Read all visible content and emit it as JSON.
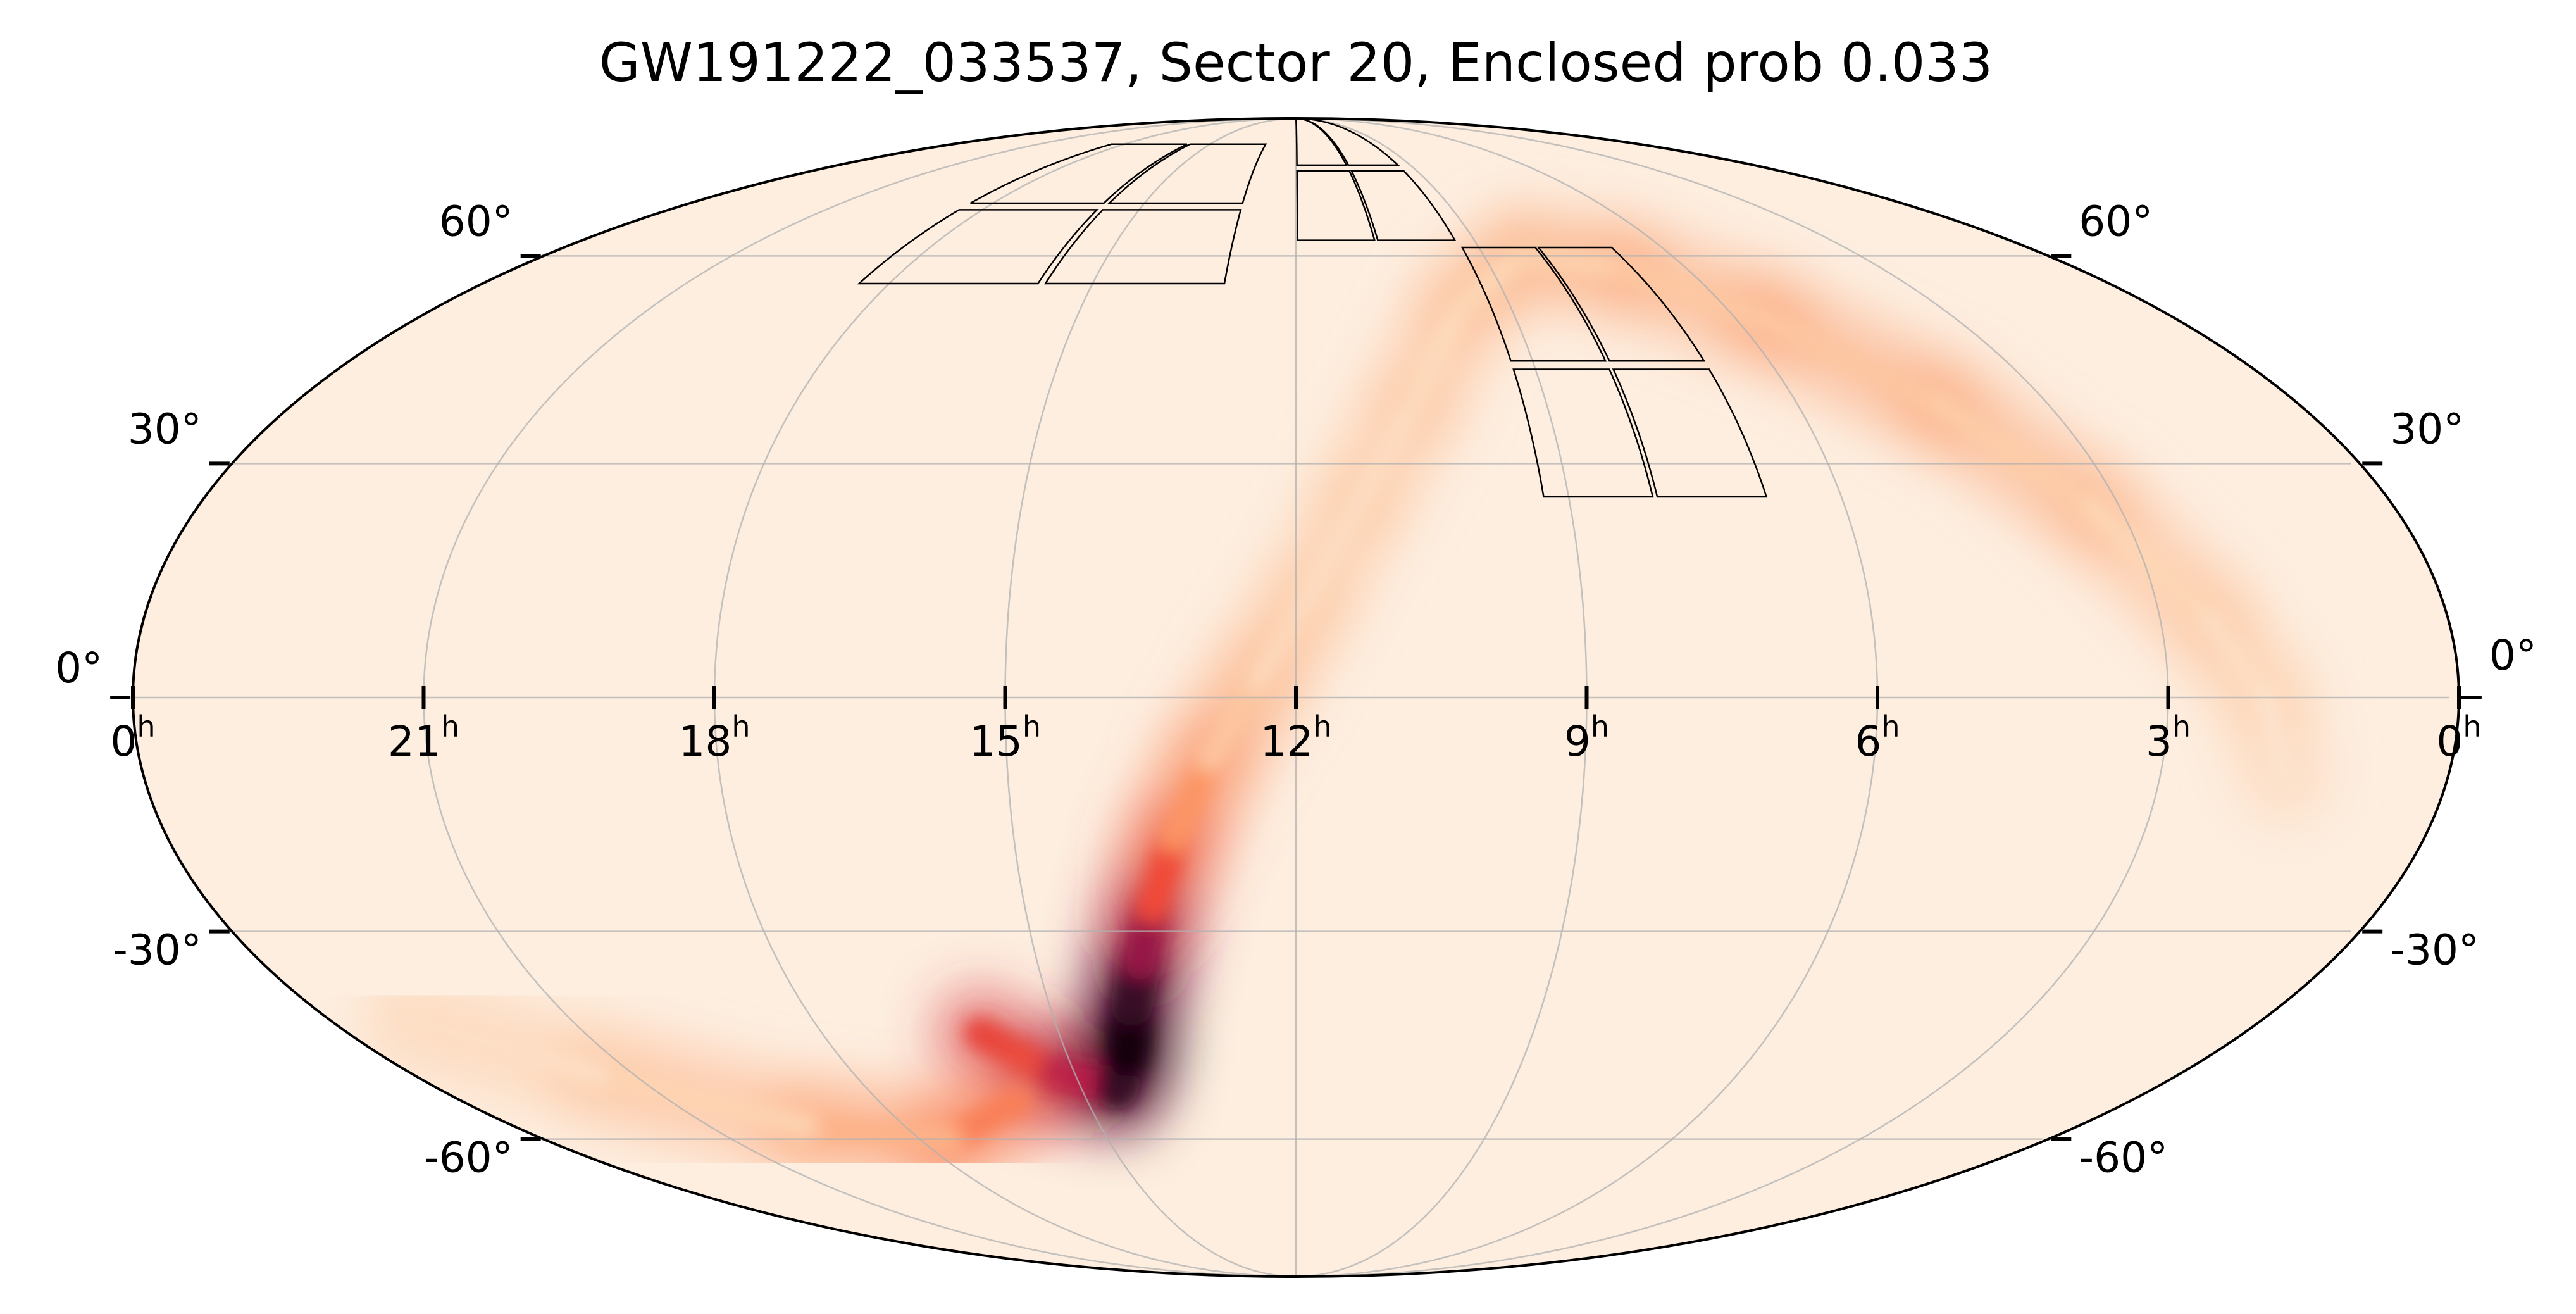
{
  "chart_data": {
    "type": "heatmap",
    "projection": "mollweide",
    "title": "GW191222_033537, Sector 20, Enclosed prob 0.033",
    "xlabel": "",
    "ylabel": "",
    "grid": true,
    "ra_range_hours": [
      24,
      0
    ],
    "dec_range_deg": [
      -90,
      90
    ],
    "ra_ticks": [
      {
        "h": 24,
        "label": "0",
        "sup": "h"
      },
      {
        "h": 21,
        "label": "21",
        "sup": "h"
      },
      {
        "h": 18,
        "label": "18",
        "sup": "h"
      },
      {
        "h": 15,
        "label": "15",
        "sup": "h"
      },
      {
        "h": 12,
        "label": "12",
        "sup": "h"
      },
      {
        "h": 9,
        "label": "9",
        "sup": "h"
      },
      {
        "h": 6,
        "label": "6",
        "sup": "h"
      },
      {
        "h": 3,
        "label": "3",
        "sup": "h"
      },
      {
        "h": 0,
        "label": "0",
        "sup": "h"
      }
    ],
    "dec_ticks": [
      {
        "dec": 60,
        "label": "60°"
      },
      {
        "dec": 30,
        "label": "30°"
      },
      {
        "dec": 0,
        "label": "0°"
      },
      {
        "dec": -30,
        "label": "-30°"
      },
      {
        "dec": -60,
        "label": "-60°"
      }
    ],
    "colormap": [
      "#fdeee0",
      "#fdd3b0",
      "#fc9160",
      "#f04a37",
      "#b5174a",
      "#600a3f",
      "#180410"
    ],
    "probability_arc": {
      "description_points": [
        {
          "ra_h": 16.0,
          "dec": -44,
          "weight": 0.55
        },
        {
          "ra_h": 15.3,
          "dec": -50,
          "weight": 0.5
        },
        {
          "ra_h": 14.5,
          "dec": -52,
          "weight": 0.85
        },
        {
          "ra_h": 14.2,
          "dec": -47,
          "weight": 1.0
        },
        {
          "ra_h": 14.0,
          "dec": -40,
          "weight": 1.0
        },
        {
          "ra_h": 13.8,
          "dec": -34,
          "weight": 0.85
        },
        {
          "ra_h": 13.6,
          "dec": -27,
          "weight": 0.6
        },
        {
          "ra_h": 13.3,
          "dec": -18,
          "weight": 0.4
        },
        {
          "ra_h": 12.9,
          "dec": -8,
          "weight": 0.25
        },
        {
          "ra_h": 12.4,
          "dec": 2,
          "weight": 0.15
        },
        {
          "ra_h": 11.9,
          "dec": 12,
          "weight": 0.11
        },
        {
          "ra_h": 11.3,
          "dec": 25,
          "weight": 0.1
        },
        {
          "ra_h": 10.6,
          "dec": 38,
          "weight": 0.11
        },
        {
          "ra_h": 9.7,
          "dec": 52,
          "weight": 0.13
        },
        {
          "ra_h": 8.4,
          "dec": 60,
          "weight": 0.16
        },
        {
          "ra_h": 7.0,
          "dec": 58,
          "weight": 0.19
        },
        {
          "ra_h": 5.6,
          "dec": 50,
          "weight": 0.2
        },
        {
          "ra_h": 4.3,
          "dec": 38,
          "weight": 0.2
        },
        {
          "ra_h": 3.3,
          "dec": 24,
          "weight": 0.17
        },
        {
          "ra_h": 2.5,
          "dec": 10,
          "weight": 0.12
        },
        {
          "ra_h": 2.0,
          "dec": 0,
          "weight": 0.08
        },
        {
          "ra_h": 1.7,
          "dec": -10,
          "weight": 0.05
        }
      ],
      "southern_tail": [
        {
          "ra_h": 16.0,
          "dec": -54,
          "weight": 0.45
        },
        {
          "ra_h": 17.5,
          "dec": -60,
          "weight": 0.3
        },
        {
          "ra_h": 19.5,
          "dec": -58,
          "weight": 0.2
        },
        {
          "ra_h": 21.5,
          "dec": -50,
          "weight": 0.12
        },
        {
          "ra_h": 23.0,
          "dec": -42,
          "weight": 0.06
        }
      ]
    },
    "tess_sector": {
      "sector": 20,
      "camera_footprints": [
        {
          "ra_min_h": 6.8,
          "ra_max_h": 9.3,
          "dec_min": 25,
          "dec_max": 62
        },
        {
          "ra_min_h": 9.3,
          "ra_max_h": 12.0,
          "dec_min": 62,
          "dec_max": 90
        },
        {
          "ra_min_h": 13.0,
          "ra_max_h": 18.5,
          "dec_min": 55,
          "dec_max": 82
        }
      ]
    }
  }
}
